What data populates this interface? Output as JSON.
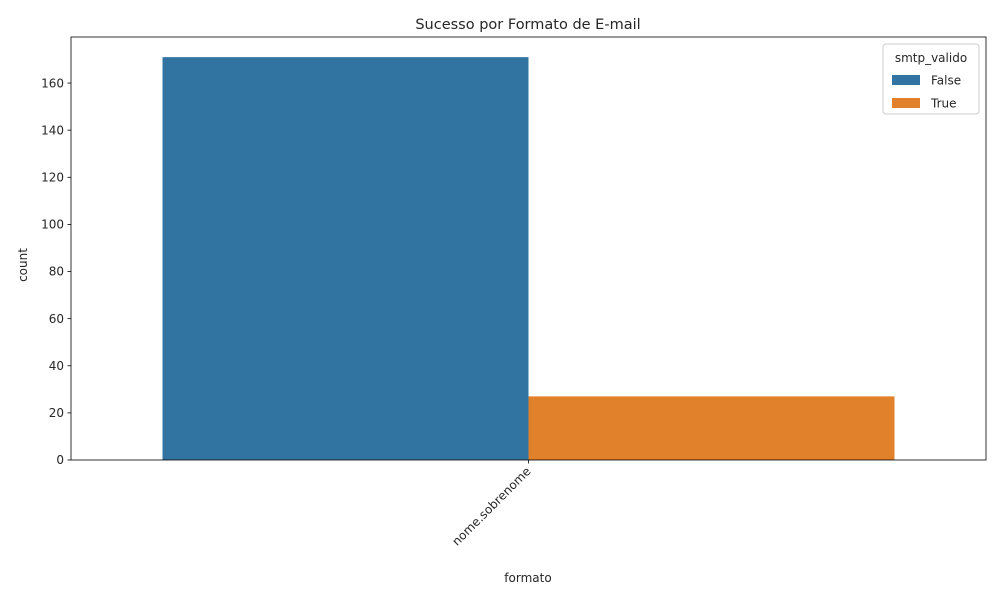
{
  "chart_data": {
    "type": "bar",
    "title": "Sucesso por Formato de E-mail",
    "xlabel": "formato",
    "ylabel": "count",
    "categories": [
      "nome.sobrenome"
    ],
    "series": [
      {
        "name": "False",
        "values": [
          171
        ],
        "color": "#3274a1"
      },
      {
        "name": "True",
        "values": [
          27
        ],
        "color": "#e1812c"
      }
    ],
    "ylim": [
      0,
      179.55
    ],
    "yticks": [
      0,
      20,
      40,
      60,
      80,
      100,
      120,
      140,
      160
    ],
    "x_tick_rotation_deg": 45,
    "grid": false,
    "legend": {
      "title": "smtp_valido",
      "placement": "top-right"
    }
  }
}
